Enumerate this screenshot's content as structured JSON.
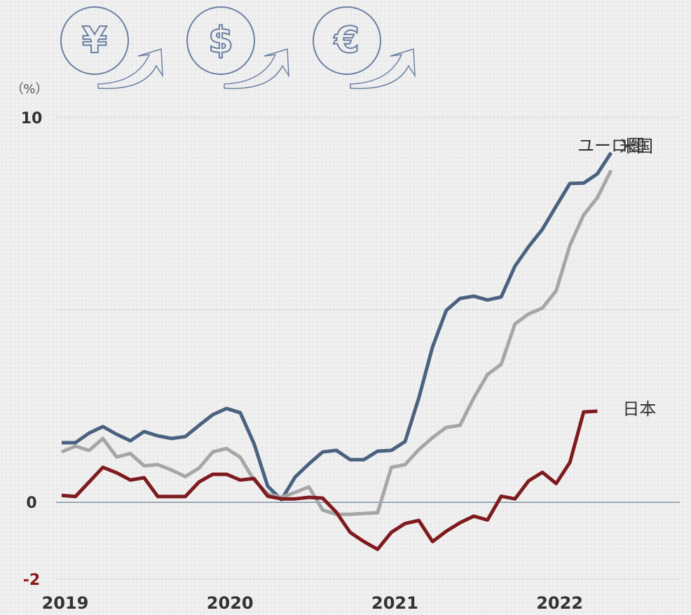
{
  "chart_data": {
    "type": "line",
    "unit_label": "（%）",
    "icons": [
      "¥",
      "$",
      "€"
    ],
    "categories": [
      "2019",
      null,
      null,
      null,
      null,
      null,
      null,
      null,
      null,
      null,
      null,
      null,
      "2020",
      null,
      null,
      null,
      null,
      null,
      null,
      null,
      null,
      null,
      null,
      null,
      "2021",
      null,
      null,
      null,
      null,
      null,
      null,
      null,
      null,
      null,
      null,
      null,
      "2022",
      null,
      null,
      null,
      null
    ],
    "series": [
      {
        "name": "米国",
        "color": "#4a6180",
        "values": [
          1.55,
          1.55,
          1.8,
          1.97,
          1.77,
          1.6,
          1.84,
          1.73,
          1.66,
          1.71,
          2.0,
          2.28,
          2.44,
          2.33,
          1.53,
          0.42,
          0.07,
          0.66,
          1.0,
          1.31,
          1.35,
          1.11,
          1.11,
          1.33,
          1.35,
          1.58,
          2.71,
          4.04,
          4.99,
          5.3,
          5.36,
          5.26,
          5.34,
          6.14,
          6.65,
          7.1,
          7.7,
          8.29,
          8.3,
          8.54,
          9.09
        ]
      },
      {
        "name": "ユーロ圏",
        "color": "#a6a6a6",
        "values": [
          1.31,
          1.46,
          1.35,
          1.66,
          1.18,
          1.27,
          0.95,
          0.98,
          0.84,
          0.67,
          0.89,
          1.31,
          1.4,
          1.17,
          0.58,
          0.22,
          0.13,
          0.26,
          0.4,
          -0.2,
          -0.31,
          -0.31,
          -0.29,
          -0.27,
          0.91,
          0.98,
          1.37,
          1.68,
          1.95,
          2.0,
          2.71,
          3.32,
          3.59,
          4.64,
          4.9,
          5.05,
          5.5,
          6.68,
          7.47,
          7.92,
          8.63
        ]
      },
      {
        "name": "日本",
        "color": "#7f1a1f",
        "values": [
          0.18,
          0.15,
          0.53,
          0.91,
          0.77,
          0.58,
          0.64,
          0.15,
          0.15,
          0.15,
          0.53,
          0.73,
          0.73,
          0.58,
          0.62,
          0.16,
          0.09,
          0.09,
          0.13,
          0.11,
          -0.26,
          -0.78,
          -1.02,
          -1.22,
          -0.78,
          -0.55,
          -0.47,
          -1.02,
          -0.75,
          -0.53,
          -0.36,
          -0.46,
          0.16,
          0.09,
          0.56,
          0.78,
          0.49,
          1.04,
          2.35,
          2.37,
          null
        ]
      }
    ],
    "ylim": [
      -2,
      10.2
    ],
    "yticks": [
      -2,
      0,
      10
    ],
    "ygrid": [
      -2,
      5,
      10
    ],
    "zero_line": true
  }
}
